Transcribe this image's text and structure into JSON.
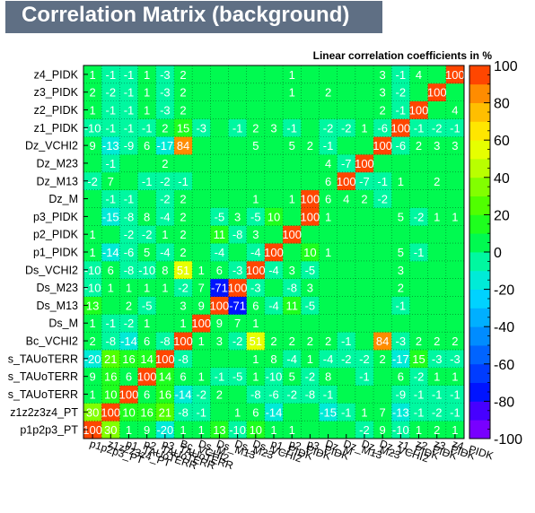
{
  "header": {
    "title": "Correlation Matrix (background)",
    "subtitle": "Linear correlation coefficients in %"
  },
  "chart_data": {
    "type": "heatmap",
    "title": "Correlation Matrix (background)",
    "subtitle": "Linear correlation coefficients in %",
    "z_range": [
      -100,
      100
    ],
    "colorbar_ticks": [
      100,
      80,
      60,
      40,
      20,
      0,
      -20,
      -40,
      -60,
      -80,
      -100
    ],
    "variables": [
      "p1p2p3_PT",
      "z1z2z3z4_PT",
      "1_TAUoTERR",
      "2_TAUoTERR",
      "3_TAUoTERR",
      "Bc_VCHI2",
      "Ds_M",
      "Ds_M13",
      "Ds_M23",
      "Ds_VCHI2",
      "p1_PIDK",
      "p2_PIDK",
      "p3_PIDK",
      "Dz_M",
      "Dz_M13",
      "Dz_M23",
      "Dz_VCHI2",
      "z1_PIDK",
      "z2_PIDK",
      "z3_PIDK",
      "z4_PIDK"
    ],
    "y_tick_labels": [
      "p1p2p3_PT",
      "z1z2z3z4_PT",
      "s_TAUoTERR",
      "s_TAUoTERR",
      "s_TAUoTERR",
      "Bc_VCHI2",
      "Ds_M",
      "Ds_M13",
      "Ds_M23",
      "Ds_VCHI2",
      "p1_PIDK",
      "p2_PIDK",
      "p3_PIDK",
      "Dz_M",
      "Dz_M13",
      "Dz_M23",
      "Dz_VCHI2",
      "z1_PIDK",
      "z2_PIDK",
      "z3_PIDK",
      "z4_PIDK"
    ],
    "x_tick_labels": [
      "p1p2p3_PT",
      "z1z2z3z4_PT",
      "p1_TAUoTERR",
      "p2_TAUoTERR",
      "p3_TAUoTERR",
      "Bc_VCHI2",
      "Ds_M",
      "Ds_M13",
      "Ds_M23",
      "Ds_VCHI2",
      "p1_PIDK",
      "p2_PIDK",
      "p3_PIDK",
      "Dz_M",
      "Dz_M13",
      "Dz_M23",
      "Dz_VCHI2",
      "z1_PIDK",
      "z2_PIDK",
      "z3_PIDK",
      "z4_PIDK"
    ],
    "matrix": [
      [
        100,
        30,
        1,
        9,
        -20,
        1,
        1,
        13,
        -10,
        10,
        1,
        1,
        0,
        0,
        0,
        -2,
        9,
        -10,
        1,
        2,
        1
      ],
      [
        30,
        100,
        10,
        16,
        21,
        -8,
        -1,
        0,
        1,
        6,
        -14,
        0,
        0,
        -15,
        -1,
        1,
        7,
        -13,
        -1,
        -2,
        -1
      ],
      [
        1,
        10,
        100,
        6,
        16,
        -14,
        -2,
        2,
        0,
        -8,
        -6,
        -2,
        -8,
        -1,
        0,
        0,
        0,
        -9,
        -1,
        -1,
        -1
      ],
      [
        9,
        16,
        6,
        100,
        14,
        6,
        1,
        -1,
        -5,
        1,
        -10,
        5,
        -2,
        8,
        0,
        -1,
        0,
        6,
        -2,
        1,
        1
      ],
      [
        -20,
        21,
        16,
        14,
        100,
        -8,
        0,
        0,
        0,
        1,
        8,
        -4,
        1,
        -4,
        -2,
        -2,
        2,
        -17,
        15,
        -3,
        -3
      ],
      [
        2,
        -8,
        -14,
        6,
        -8,
        100,
        1,
        3,
        -2,
        51,
        2,
        2,
        2,
        2,
        -1,
        0,
        84,
        -3,
        2,
        2,
        2
      ],
      [
        1,
        -1,
        -2,
        1,
        0,
        1,
        100,
        9,
        7,
        1,
        0,
        0,
        0,
        0,
        0,
        0,
        0,
        0,
        0,
        0,
        0
      ],
      [
        13,
        0,
        2,
        -5,
        0,
        3,
        9,
        100,
        -71,
        6,
        -4,
        11,
        -5,
        0,
        0,
        0,
        0,
        -1,
        0,
        0,
        0
      ],
      [
        -10,
        1,
        1,
        1,
        1,
        -2,
        7,
        -71,
        100,
        -3,
        0,
        -8,
        3,
        0,
        0,
        0,
        0,
        2,
        0,
        0,
        0
      ],
      [
        -10,
        6,
        -8,
        -10,
        8,
        51,
        1,
        6,
        -3,
        100,
        -4,
        3,
        -5,
        0,
        0,
        0,
        0,
        3,
        0,
        0,
        0
      ],
      [
        1,
        -14,
        -6,
        5,
        -4,
        2,
        0,
        -4,
        0,
        -4,
        100,
        0,
        10,
        1,
        0,
        0,
        0,
        5,
        -1,
        0,
        0
      ],
      [
        1,
        0,
        -2,
        -2,
        1,
        2,
        0,
        11,
        -8,
        3,
        0,
        100,
        0,
        0,
        0,
        0,
        0,
        0,
        0,
        0,
        0
      ],
      [
        0,
        -15,
        -8,
        8,
        -4,
        2,
        0,
        -5,
        3,
        -5,
        10,
        0,
        100,
        1,
        0,
        0,
        0,
        5,
        -2,
        1,
        1
      ],
      [
        0,
        -1,
        -1,
        0,
        -2,
        2,
        0,
        0,
        0,
        1,
        0,
        1,
        100,
        6,
        4,
        2,
        -2,
        0,
        0,
        0,
        0
      ],
      [
        -2,
        7,
        0,
        -1,
        -2,
        -1,
        0,
        0,
        0,
        0,
        0,
        0,
        0,
        6,
        100,
        -7,
        -1,
        1,
        0,
        2,
        0
      ],
      [
        0,
        -1,
        0,
        0,
        2,
        0,
        0,
        0,
        0,
        0,
        0,
        0,
        0,
        4,
        -7,
        100,
        0,
        0,
        0,
        0,
        0
      ],
      [
        9,
        -13,
        -9,
        6,
        -17,
        84,
        0,
        0,
        0,
        5,
        0,
        5,
        2,
        -1,
        0,
        0,
        100,
        -6,
        2,
        3,
        3
      ],
      [
        -10,
        -1,
        -1,
        -1,
        2,
        15,
        -3,
        0,
        -1,
        2,
        3,
        -1,
        0,
        -2,
        -2,
        1,
        -6,
        100,
        -1,
        -2,
        -1
      ],
      [
        1,
        -1,
        -1,
        1,
        -3,
        2,
        0,
        0,
        0,
        0,
        0,
        0,
        0,
        0,
        0,
        0,
        2,
        -1,
        100,
        0,
        4
      ],
      [
        2,
        -2,
        -1,
        1,
        -3,
        2,
        0,
        0,
        0,
        0,
        0,
        1,
        0,
        2,
        0,
        0,
        3,
        -2,
        0,
        100,
        0
      ],
      [
        1,
        -1,
        -1,
        1,
        -3,
        2,
        0,
        0,
        0,
        0,
        0,
        1,
        0,
        0,
        0,
        0,
        3,
        -1,
        4,
        0,
        100
      ]
    ]
  }
}
